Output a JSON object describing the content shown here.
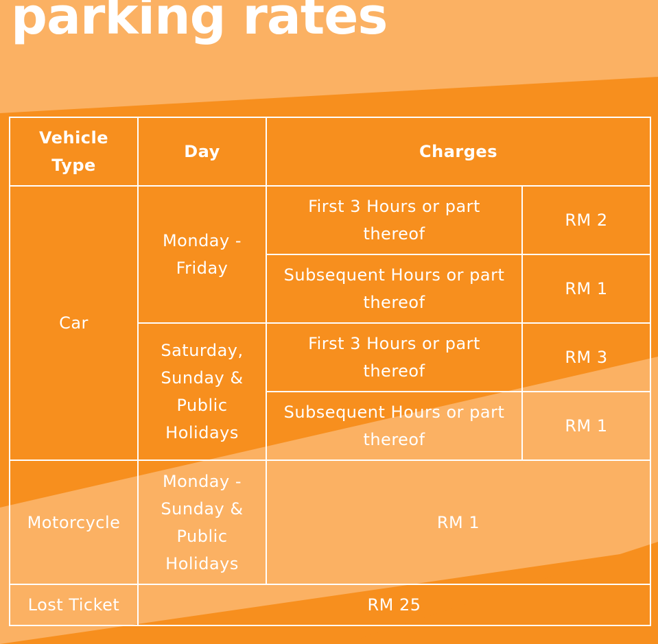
{
  "title": "parking rates",
  "colors": {
    "background": "#F78F1E",
    "light_band": "#FBB163",
    "text": "#FFFFFF",
    "border": "#FFFFFF"
  },
  "table": {
    "headers": {
      "vehicle_type": "Vehicle Type",
      "day": "Day",
      "charges": "Charges"
    },
    "rows": {
      "car_label": "Car",
      "car_weekday_label": "Monday - Friday",
      "car_weekend_label": "Saturday, Sunday & Public Holidays",
      "car_weekday_first": "First 3 Hours or part thereof",
      "car_weekday_first_price": "RM 2",
      "car_weekday_subsequent": "Subsequent Hours or part thereof",
      "car_weekday_subsequent_price": "RM 1",
      "car_weekend_first": "First 3 Hours or part thereof",
      "car_weekend_first_price": "RM 3",
      "car_weekend_subsequent": "Subsequent Hours or part thereof",
      "car_weekend_subsequent_price": "RM 1",
      "motorcycle_label": "Motorcycle",
      "motorcycle_day": "Monday - Sunday & Public Holidays",
      "motorcycle_price": "RM 1",
      "lost_ticket_label": "Lost Ticket",
      "lost_ticket_price": "RM 25"
    }
  }
}
